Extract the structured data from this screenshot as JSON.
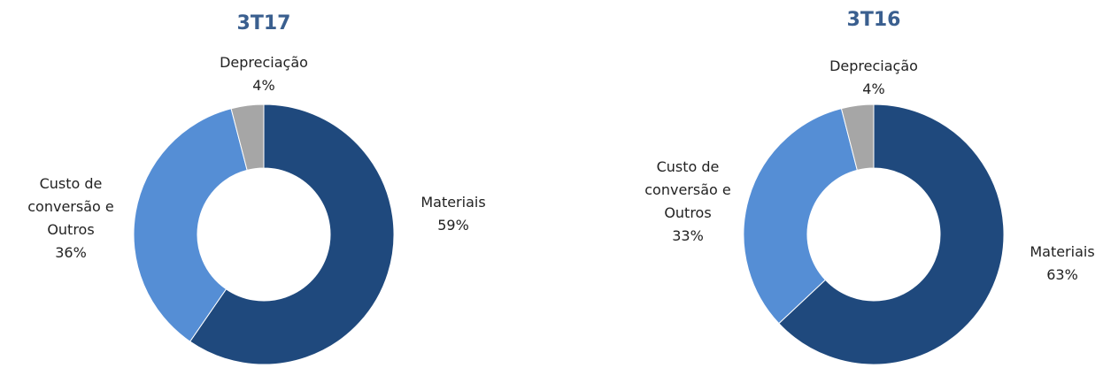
{
  "chart_data": [
    {
      "type": "donut",
      "title": "3T17",
      "categories": [
        "Materiais",
        "Custo de conversão e Outros",
        "Depreciação"
      ],
      "values": [
        59,
        36,
        4
      ],
      "value_labels": [
        "59%",
        "36%",
        "4%"
      ],
      "colors": [
        "#1f497d",
        "#558ed5",
        "#a6a6a6"
      ]
    },
    {
      "type": "donut",
      "title": "3T16",
      "categories": [
        "Materiais",
        "Custo de conversão e Outros",
        "Depreciação"
      ],
      "values": [
        63,
        33,
        4
      ],
      "value_labels": [
        "63%",
        "33%",
        "4%"
      ],
      "colors": [
        "#1f497d",
        "#558ed5",
        "#a6a6a6"
      ]
    }
  ]
}
